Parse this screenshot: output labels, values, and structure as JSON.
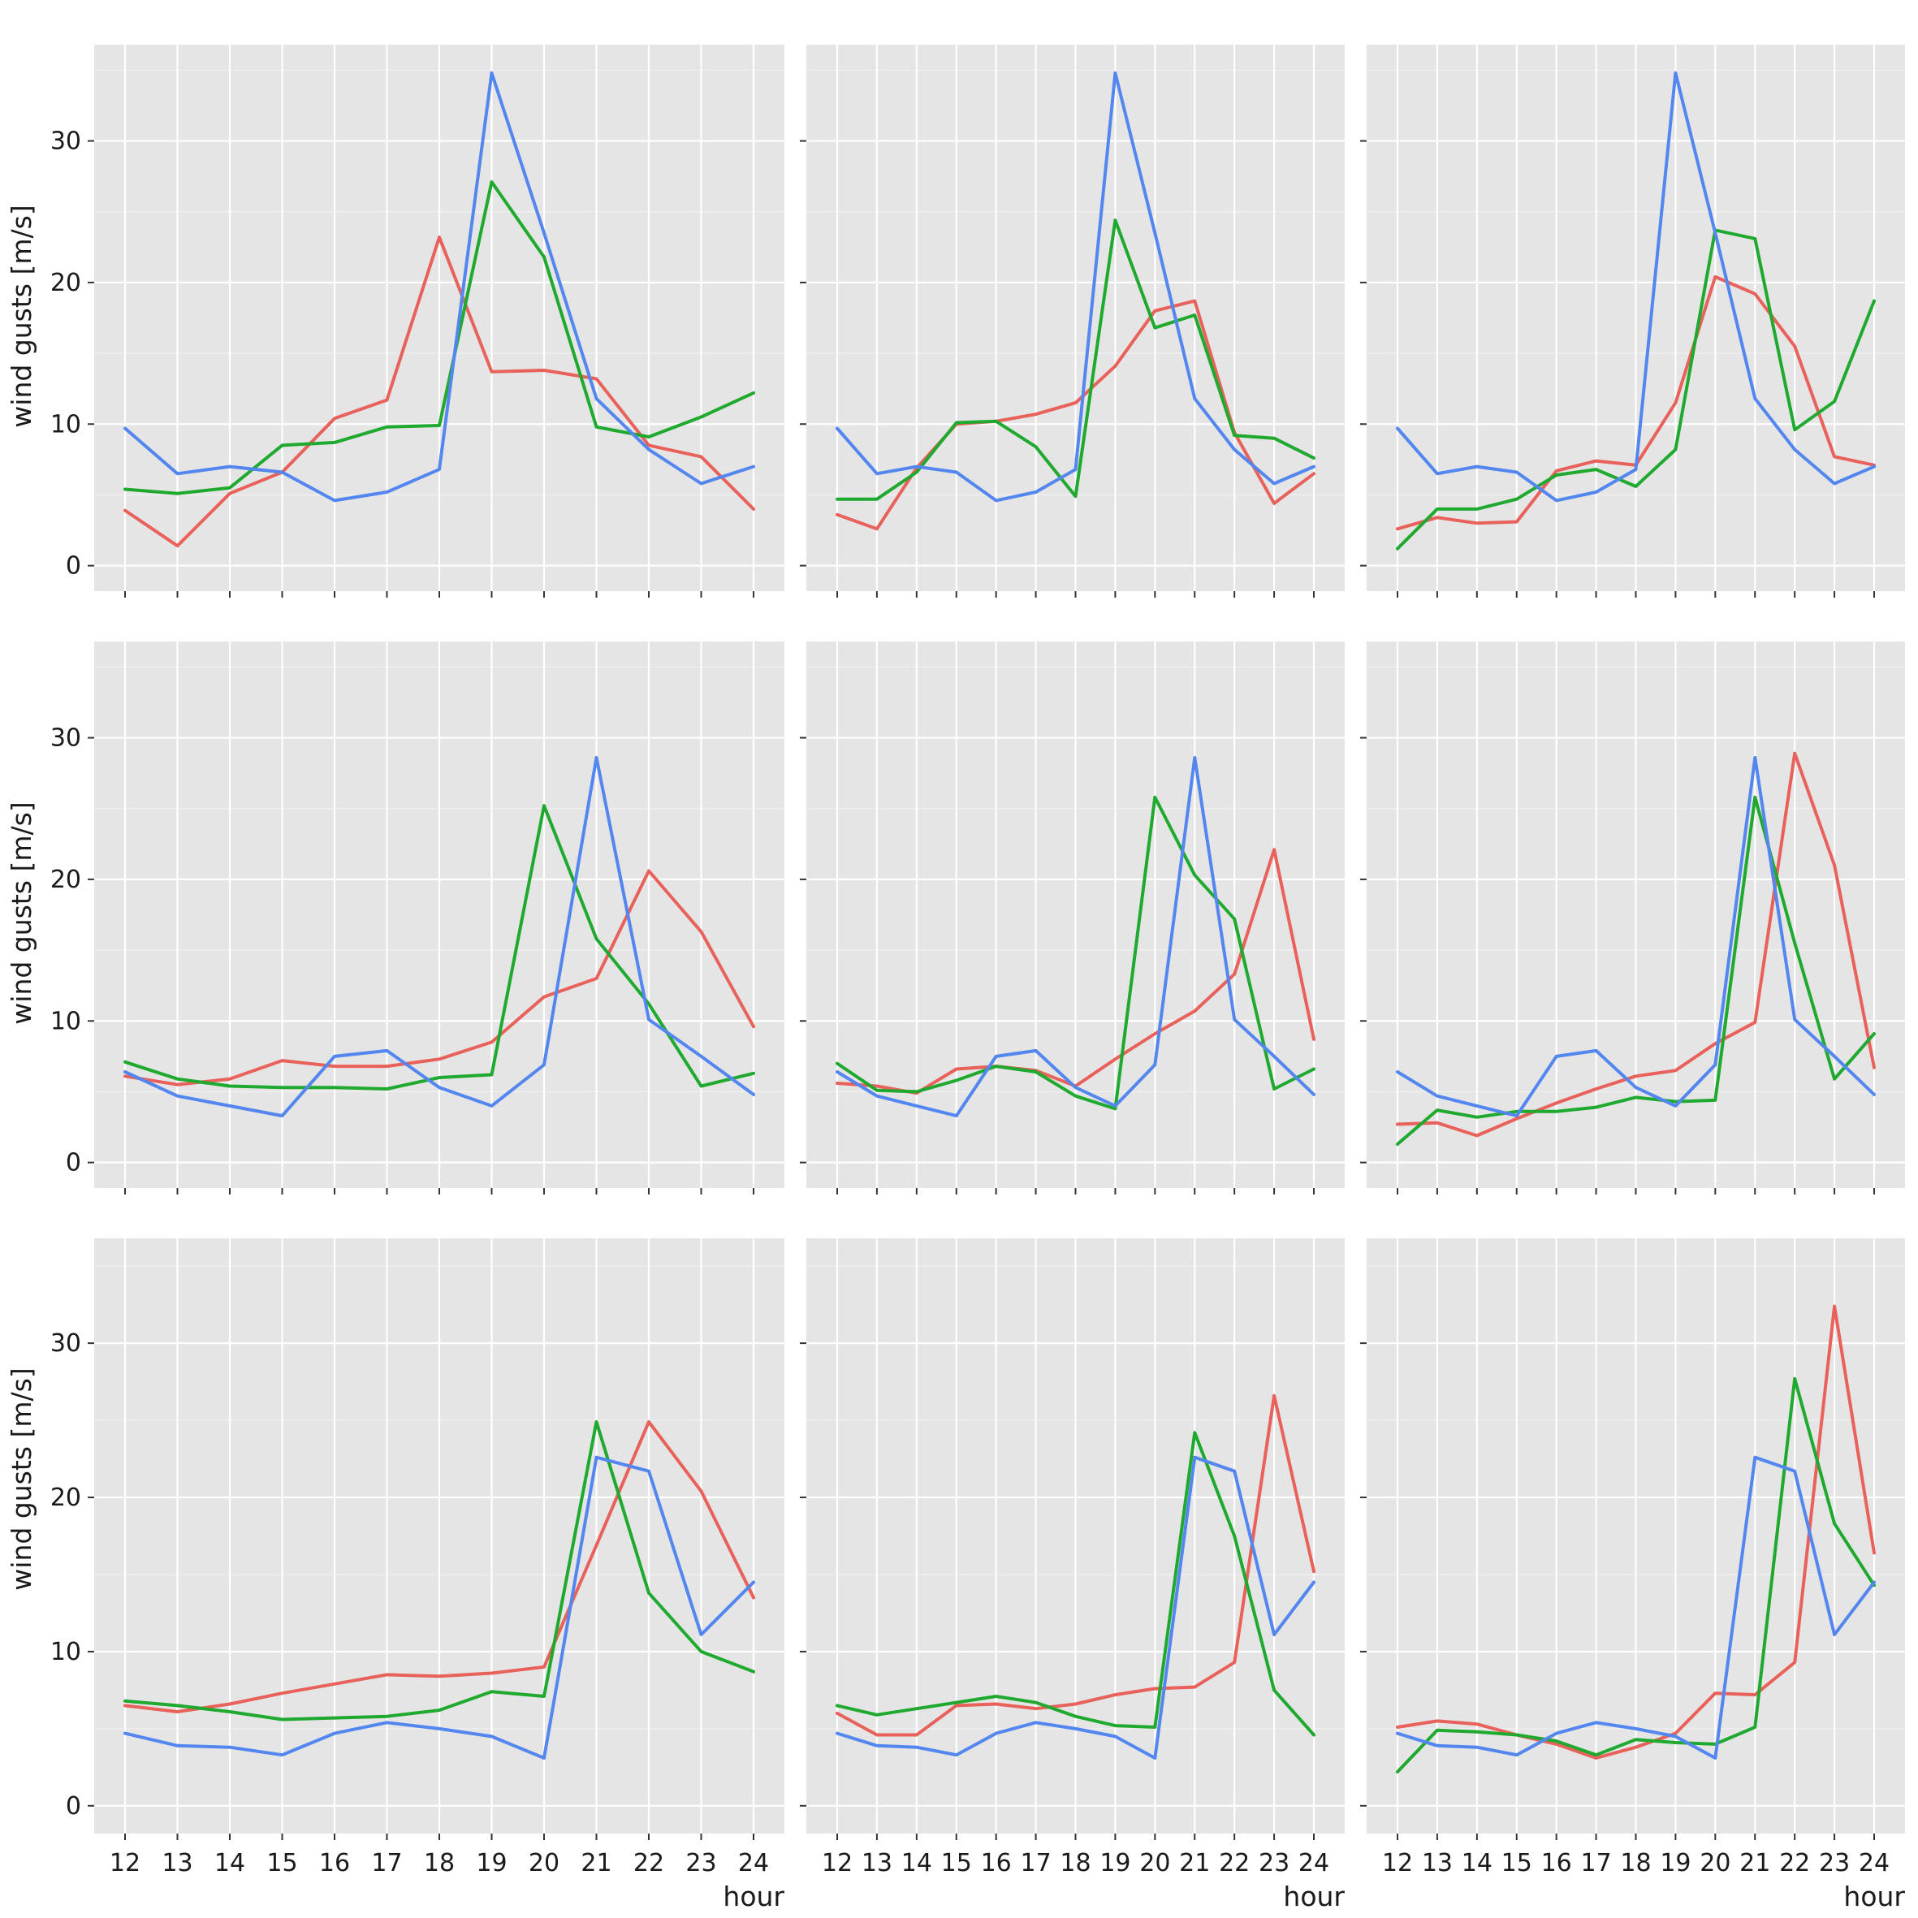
{
  "chart_data": {
    "type": "line",
    "layout": "3x3 small multiples",
    "xlabel": "hour",
    "ylabel": "wind gusts [m/s]",
    "x": [
      12,
      13,
      14,
      15,
      16,
      17,
      18,
      19,
      20,
      21,
      22,
      23,
      24
    ],
    "xticks": [
      "12",
      "13",
      "14",
      "15",
      "16",
      "17",
      "18",
      "19",
      "20",
      "21",
      "22",
      "23",
      "24"
    ],
    "ylim": [
      -1.8,
      36.8
    ],
    "yticks": [
      0,
      10,
      20,
      30
    ],
    "grid": true,
    "legend": "none",
    "series_colors": {
      "red": "#e8615a",
      "green": "#1faa2f",
      "blue": "#5387ef"
    },
    "panels": [
      {
        "series": [
          {
            "color": "red",
            "values": [
              3.9,
              1.4,
              5.1,
              6.6,
              10.4,
              11.7,
              23.2,
              13.7,
              13.8,
              13.2,
              8.5,
              7.7,
              4.0
            ]
          },
          {
            "color": "green",
            "values": [
              5.4,
              5.1,
              5.5,
              8.5,
              8.7,
              9.8,
              9.9,
              27.1,
              21.8,
              9.8,
              9.1,
              10.5,
              12.2
            ]
          },
          {
            "color": "blue",
            "values": [
              9.7,
              6.5,
              7.0,
              6.6,
              4.6,
              5.2,
              6.8,
              34.8,
              23.5,
              11.8,
              8.2,
              5.8,
              7.0
            ]
          }
        ]
      },
      {
        "series": [
          {
            "color": "red",
            "values": [
              3.6,
              2.6,
              6.9,
              10.0,
              10.2,
              10.7,
              11.5,
              14.1,
              18.0,
              18.7,
              9.4,
              4.4,
              6.5
            ]
          },
          {
            "color": "green",
            "values": [
              4.7,
              4.7,
              6.6,
              10.1,
              10.2,
              8.4,
              4.9,
              24.4,
              16.8,
              17.7,
              9.2,
              9.0,
              7.6
            ]
          },
          {
            "color": "blue",
            "values": [
              9.7,
              6.5,
              7.0,
              6.6,
              4.6,
              5.2,
              6.8,
              34.8,
              23.5,
              11.8,
              8.2,
              5.8,
              7.0
            ]
          }
        ]
      },
      {
        "series": [
          {
            "color": "red",
            "values": [
              2.6,
              3.4,
              3.0,
              3.1,
              6.7,
              7.4,
              7.1,
              11.5,
              20.4,
              19.2,
              15.5,
              7.7,
              7.1
            ]
          },
          {
            "color": "green",
            "values": [
              1.2,
              4.0,
              4.0,
              4.7,
              6.4,
              6.8,
              5.6,
              8.2,
              23.7,
              23.1,
              9.6,
              11.6,
              18.7
            ]
          },
          {
            "color": "blue",
            "values": [
              9.7,
              6.5,
              7.0,
              6.6,
              4.6,
              5.2,
              6.8,
              34.8,
              23.5,
              11.8,
              8.2,
              5.8,
              7.0
            ]
          }
        ]
      },
      {
        "series": [
          {
            "color": "red",
            "values": [
              6.1,
              5.5,
              5.9,
              7.2,
              6.8,
              6.8,
              7.3,
              8.5,
              11.7,
              13.0,
              20.6,
              16.3,
              9.6
            ]
          },
          {
            "color": "green",
            "values": [
              7.1,
              5.9,
              5.4,
              5.3,
              5.3,
              5.2,
              6.0,
              6.2,
              25.2,
              15.8,
              11.2,
              5.4,
              6.3
            ]
          },
          {
            "color": "blue",
            "values": [
              6.4,
              4.7,
              4.0,
              3.3,
              7.5,
              7.9,
              5.3,
              4.0,
              6.9,
              28.6,
              10.1,
              7.5,
              4.8
            ]
          }
        ]
      },
      {
        "series": [
          {
            "color": "red",
            "values": [
              5.6,
              5.4,
              4.9,
              6.6,
              6.8,
              6.5,
              5.4,
              7.3,
              9.1,
              10.7,
              13.3,
              22.1,
              8.7
            ]
          },
          {
            "color": "green",
            "values": [
              7.0,
              5.1,
              5.0,
              5.8,
              6.8,
              6.4,
              4.7,
              3.8,
              25.8,
              20.3,
              17.2,
              5.2,
              6.6
            ]
          },
          {
            "color": "blue",
            "values": [
              6.4,
              4.7,
              4.0,
              3.3,
              7.5,
              7.9,
              5.3,
              4.0,
              6.9,
              28.6,
              10.1,
              7.5,
              4.8
            ]
          }
        ]
      },
      {
        "series": [
          {
            "color": "red",
            "values": [
              2.7,
              2.8,
              1.9,
              3.1,
              4.2,
              5.2,
              6.1,
              6.5,
              8.4,
              9.9,
              28.9,
              21.0,
              6.7
            ]
          },
          {
            "color": "green",
            "values": [
              1.3,
              3.7,
              3.2,
              3.6,
              3.6,
              3.9,
              4.6,
              4.3,
              4.4,
              25.8,
              15.5,
              5.9,
              9.1
            ]
          },
          {
            "color": "blue",
            "values": [
              6.4,
              4.7,
              4.0,
              3.3,
              7.5,
              7.9,
              5.3,
              4.0,
              6.9,
              28.6,
              10.1,
              7.5,
              4.8
            ]
          }
        ]
      },
      {
        "series": [
          {
            "color": "red",
            "values": [
              6.5,
              6.1,
              6.6,
              7.3,
              7.9,
              8.5,
              8.4,
              8.6,
              9.0,
              16.9,
              24.9,
              20.4,
              13.5
            ]
          },
          {
            "color": "green",
            "values": [
              6.8,
              6.5,
              6.1,
              5.6,
              5.7,
              5.8,
              6.2,
              7.4,
              7.1,
              24.9,
              13.8,
              10.0,
              8.7
            ]
          },
          {
            "color": "blue",
            "values": [
              4.7,
              3.9,
              3.8,
              3.3,
              4.7,
              5.4,
              5.0,
              4.5,
              3.1,
              22.6,
              21.7,
              11.1,
              14.5
            ]
          }
        ]
      },
      {
        "series": [
          {
            "color": "red",
            "values": [
              6.0,
              4.6,
              4.6,
              6.5,
              6.6,
              6.3,
              6.6,
              7.2,
              7.6,
              7.7,
              9.3,
              26.6,
              15.2
            ]
          },
          {
            "color": "green",
            "values": [
              6.5,
              5.9,
              6.3,
              6.7,
              7.1,
              6.7,
              5.8,
              5.2,
              5.1,
              24.2,
              17.5,
              7.5,
              4.6
            ]
          },
          {
            "color": "blue",
            "values": [
              4.7,
              3.9,
              3.8,
              3.3,
              4.7,
              5.4,
              5.0,
              4.5,
              3.1,
              22.6,
              21.7,
              11.1,
              14.5
            ]
          }
        ]
      },
      {
        "series": [
          {
            "color": "red",
            "values": [
              5.1,
              5.5,
              5.3,
              4.6,
              4.0,
              3.1,
              3.8,
              4.7,
              7.3,
              7.2,
              9.3,
              32.4,
              16.4
            ]
          },
          {
            "color": "green",
            "values": [
              2.2,
              4.9,
              4.8,
              4.6,
              4.2,
              3.3,
              4.3,
              4.1,
              4.0,
              5.1,
              27.7,
              18.3,
              14.3
            ]
          },
          {
            "color": "blue",
            "values": [
              4.7,
              3.9,
              3.8,
              3.3,
              4.7,
              5.4,
              5.0,
              4.5,
              3.1,
              22.6,
              21.7,
              11.1,
              14.5
            ]
          }
        ]
      }
    ]
  }
}
